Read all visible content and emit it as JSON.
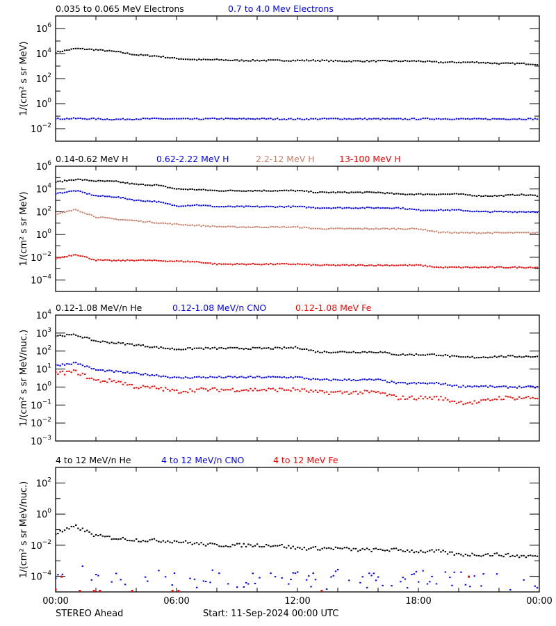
{
  "footer": {
    "spacecraft": "STEREO Ahead",
    "start": "Start: 11-Sep-2024 00:00 UTC"
  },
  "x_axis": {
    "tick_labels": [
      "00:00",
      "06:00",
      "12:00",
      "18:00",
      "00:00"
    ],
    "range_hours": [
      0,
      24
    ],
    "major_every_hours": 6,
    "minor_every_hours": 2
  },
  "chart_data": [
    {
      "type": "scatter",
      "yscale": "log",
      "ylabel": "1/(cm² s sr MeV)",
      "ylim": [
        0.001,
        10000000.0
      ],
      "ytick_exponents": [
        -2,
        0,
        2,
        4,
        6
      ],
      "x_hours": [
        0,
        1,
        2,
        3,
        4,
        5,
        6,
        7,
        8,
        9,
        10,
        11,
        12,
        13,
        14,
        15,
        16,
        17,
        18,
        19,
        20,
        21,
        22,
        23,
        24
      ],
      "series": [
        {
          "name": "0.035 to 0.065 MeV Electrons",
          "color": "#000000",
          "values": [
            12600,
            25000,
            20000,
            14000,
            7900,
            6300,
            4000,
            3200,
            3200,
            2800,
            2800,
            2800,
            2800,
            2800,
            2500,
            2500,
            2500,
            2500,
            2500,
            2000,
            2000,
            2000,
            1600,
            1600,
            1400
          ]
        },
        {
          "name": "0.7 to 4.0 Mev Electrons",
          "color": "#0000ff",
          "values": [
            0.06,
            0.065,
            0.06,
            0.055,
            0.06,
            0.062,
            0.06,
            0.058,
            0.063,
            0.06,
            0.062,
            0.06,
            0.058,
            0.06,
            0.062,
            0.06,
            0.06,
            0.058,
            0.06,
            0.062,
            0.06,
            0.058,
            0.06,
            0.06,
            0.06
          ]
        }
      ]
    },
    {
      "type": "scatter",
      "yscale": "log",
      "ylabel": "1/(cm² s sr MeV)",
      "ylim": [
        1e-05,
        1000000.0
      ],
      "ytick_exponents": [
        -4,
        -2,
        0,
        2,
        4,
        6
      ],
      "x_hours": [
        0,
        1,
        2,
        3,
        4,
        5,
        6,
        7,
        8,
        9,
        10,
        11,
        12,
        13,
        14,
        15,
        16,
        17,
        18,
        19,
        20,
        21,
        22,
        23,
        24
      ],
      "series": [
        {
          "name": "0.14-0.62 MeV H",
          "color": "#000000",
          "values": [
            40000,
            71000,
            50000,
            45000,
            25000,
            22000,
            10000,
            8900,
            7100,
            7100,
            7100,
            7100,
            7100,
            5000,
            5000,
            5000,
            5000,
            3500,
            3500,
            3500,
            3500,
            2500,
            2500,
            3200,
            2500
          ]
        },
        {
          "name": "0.62-2.22 MeV H",
          "color": "#0000ff",
          "values": [
            4000,
            7100,
            2500,
            2000,
            1000,
            790,
            320,
            400,
            280,
            280,
            280,
            280,
            280,
            220,
            220,
            220,
            220,
            220,
            140,
            140,
            140,
            100,
            100,
            100,
            100
          ]
        },
        {
          "name": "2.2-12 MeV H",
          "color": "#c8806a",
          "values": [
            56,
            158,
            35,
            22,
            16,
            11,
            7.9,
            6.3,
            5.0,
            4.5,
            4.5,
            4.5,
            4.5,
            3.2,
            3.2,
            3.2,
            3.2,
            3.2,
            3.2,
            1.6,
            1.4,
            1.4,
            1.4,
            1.4,
            1.4
          ]
        },
        {
          "name": "13-100 MeV H",
          "color": "#ff0000",
          "values": [
            0.0079,
            0.018,
            0.0056,
            0.005,
            0.0056,
            0.005,
            0.0045,
            0.004,
            0.0025,
            0.0025,
            0.0025,
            0.0025,
            0.0025,
            0.002,
            0.002,
            0.002,
            0.002,
            0.002,
            0.002,
            0.0013,
            0.0013,
            0.0013,
            0.0013,
            0.0013,
            0.0013
          ]
        }
      ]
    },
    {
      "type": "scatter",
      "yscale": "log",
      "ylabel": "1/(cm² s sr MeV/nuc.)",
      "ylim": [
        0.001,
        10000.0
      ],
      "ytick_exponents": [
        -3,
        -2,
        -1,
        0,
        1,
        2,
        3,
        4
      ],
      "x_hours": [
        0,
        1,
        2,
        3,
        4,
        5,
        6,
        7,
        8,
        9,
        10,
        11,
        12,
        13,
        14,
        15,
        16,
        17,
        18,
        19,
        20,
        21,
        22,
        23,
        24
      ],
      "series": [
        {
          "name": "0.12-1.08 MeV/n He",
          "color": "#000000",
          "values": [
            710,
            790,
            355,
            280,
            220,
            160,
            126,
            141,
            141,
            141,
            141,
            141,
            158,
            89,
            89,
            89,
            89,
            63,
            63,
            63,
            45,
            45,
            50,
            50,
            50
          ]
        },
        {
          "name": "0.12-1.08 MeV/n CNO",
          "color": "#0000ff",
          "values": [
            16,
            22,
            8.9,
            7.1,
            5.6,
            4.5,
            3.2,
            3.5,
            3.5,
            3.5,
            3.5,
            3.5,
            3.5,
            2.5,
            2.5,
            2.5,
            2.5,
            1.6,
            1.6,
            1.6,
            1.1,
            1.1,
            1.0,
            1.0,
            1.0
          ]
        },
        {
          "name": "0.12-1.08 MeV Fe",
          "color": "#ff0000",
          "values": [
            5.6,
            7.1,
            2.2,
            2.2,
            1.0,
            0.89,
            0.56,
            0.71,
            0.71,
            0.71,
            0.71,
            0.71,
            0.71,
            0.5,
            0.5,
            0.5,
            0.5,
            0.25,
            0.25,
            0.25,
            0.14,
            0.14,
            0.25,
            0.25,
            0.25
          ]
        }
      ]
    },
    {
      "type": "scatter",
      "yscale": "log",
      "ylabel": "1/(cm² s sr MeV/nuc.)",
      "ylim": [
        1e-05,
        1000.0
      ],
      "ytick_exponents": [
        -4,
        -2,
        0,
        2
      ],
      "x_hours": [
        0,
        1,
        2,
        3,
        4,
        5,
        6,
        7,
        8,
        9,
        10,
        11,
        12,
        13,
        14,
        15,
        16,
        17,
        18,
        19,
        20,
        21,
        22,
        23,
        24
      ],
      "series": [
        {
          "name": "4 to 12 MeV/n He",
          "color": "#000000",
          "values": [
            0.056,
            0.158,
            0.04,
            0.028,
            0.022,
            0.02,
            0.018,
            0.0126,
            0.01,
            0.01,
            0.01,
            0.01,
            0.0063,
            0.0063,
            0.0063,
            0.005,
            0.005,
            0.005,
            0.004,
            0.004,
            0.0025,
            0.0025,
            0.0025,
            0.002,
            0.002
          ]
        },
        {
          "name": "4 to 12 MeV/n CNO",
          "color": "#0000ff",
          "sparse": true,
          "values": [
            0.0002,
            0.0003,
            0.0001,
            8e-05,
            0.0001,
            6e-05,
            0.0001,
            5e-05,
            0.0001,
            6e-05,
            8e-05,
            5e-05,
            0.0001,
            4e-05,
            8e-05,
            5e-05,
            0.0001,
            4e-05,
            8e-05,
            5e-05,
            0.0001,
            4e-05,
            6e-05,
            5e-05,
            5e-05
          ]
        },
        {
          "name": "4 to 12 MeV Fe",
          "color": "#ff0000",
          "sparse": true,
          "points": [
            [
              0,
              1.5e-05
            ],
            [
              0.3,
              0.0001
            ],
            [
              1.2,
              1.2e-05
            ],
            [
              1.9,
              1e-05
            ],
            [
              2.2,
              1e-05
            ],
            [
              3.8,
              1e-05
            ],
            [
              5.8,
              1e-05
            ],
            [
              6.1,
              1e-05
            ],
            [
              13.2,
              1e-05
            ],
            [
              20.5,
              0.0001
            ]
          ]
        }
      ]
    }
  ]
}
